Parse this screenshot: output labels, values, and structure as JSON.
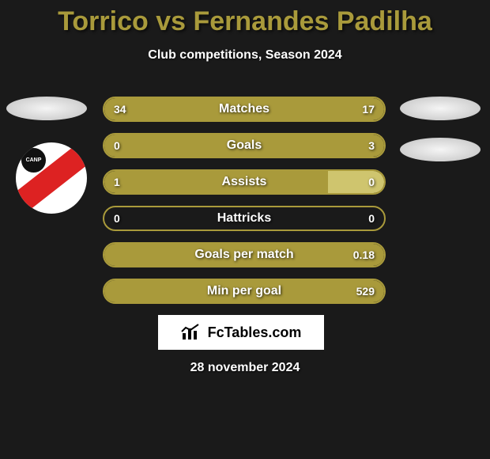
{
  "title_color": "#a99a3b",
  "title": "Torrico vs Fernandes Padilha",
  "subtitle": "Club competitions, Season 2024",
  "date": "28 november 2024",
  "brand_text": "FcTables.com",
  "bar_color": "#a99a3b",
  "bg_color": "#1a1a1a",
  "bars": [
    {
      "label": "Matches",
      "left": "34",
      "right": "17",
      "left_pct": 67,
      "right_pct": 33
    },
    {
      "label": "Goals",
      "left": "0",
      "right": "3",
      "left_pct": 0,
      "right_pct": 100
    },
    {
      "label": "Assists",
      "left": "1",
      "right": "0",
      "left_pct": 100,
      "right_pct": 0,
      "right_stub": 20
    },
    {
      "label": "Hattricks",
      "left": "0",
      "right": "0",
      "left_pct": 0,
      "right_pct": 0
    },
    {
      "label": "Goals per match",
      "left": "",
      "right": "0.18",
      "left_pct": 0,
      "right_pct": 100
    },
    {
      "label": "Min per goal",
      "left": "",
      "right": "529",
      "left_pct": 0,
      "right_pct": 100
    }
  ],
  "player_left": {
    "name": "Torrico"
  },
  "player_right": {
    "name": "Fernandes Padilha"
  },
  "club_badge": {
    "text": "CANP",
    "stripe_color": "#d22",
    "bg": "#fff"
  }
}
